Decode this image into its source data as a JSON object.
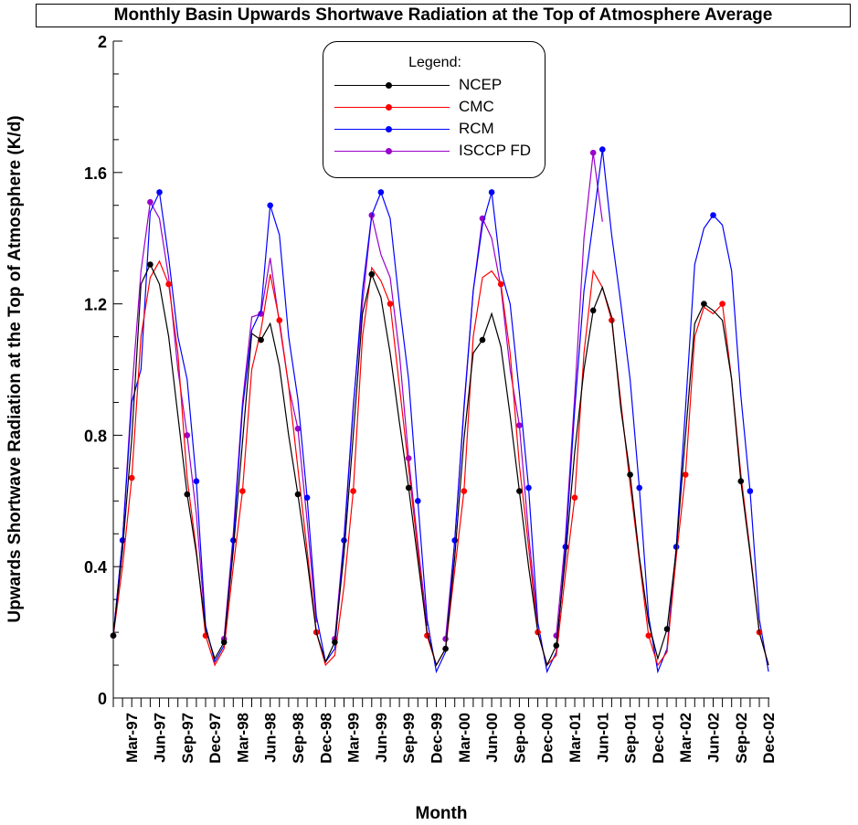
{
  "chart_data": {
    "type": "line",
    "title": "Monthly Basin Upwards Shortwave Radiation at the Top of Atmosphere Average",
    "xlabel": "Month",
    "ylabel": "Upwards Shortwave Radiation at the Top of Atmosphere (K/d)",
    "ylim": [
      0,
      2
    ],
    "yticks": [
      0,
      0.4,
      0.8,
      1.2,
      1.6,
      2
    ],
    "ytick_labels": [
      "0",
      "0.4",
      "0.8",
      "1.2",
      "1.6",
      "2"
    ],
    "x_tick_labels": [
      "Mar-97",
      "Jun-97",
      "Sep-97",
      "Dec-97",
      "Mar-98",
      "Jun-98",
      "Sep-98",
      "Dec-98",
      "Mar-99",
      "Jun-99",
      "Sep-99",
      "Dec-99",
      "Mar-00",
      "Jun-00",
      "Sep-00",
      "Dec-00",
      "Mar-01",
      "Jun-01",
      "Sep-01",
      "Dec-01",
      "Mar-02",
      "Jun-02",
      "Sep-02",
      "Dec-02"
    ],
    "legend_title": "Legend:",
    "legend_position": "top-center",
    "grid": false,
    "series": [
      {
        "name": "NCEP",
        "color": "#000000",
        "marker_every": 4,
        "marker_start": 0,
        "values": [
          0.19,
          0.45,
          0.79,
          1.26,
          1.32,
          1.26,
          1.1,
          0.86,
          0.62,
          0.44,
          0.21,
          0.12,
          0.17,
          0.45,
          0.78,
          1.11,
          1.09,
          1.14,
          1.01,
          0.8,
          0.62,
          0.42,
          0.2,
          0.11,
          0.17,
          0.44,
          0.8,
          1.17,
          1.29,
          1.22,
          1.05,
          0.84,
          0.64,
          0.42,
          0.2,
          0.1,
          0.15,
          0.43,
          0.79,
          1.05,
          1.09,
          1.17,
          1.07,
          0.86,
          0.63,
          0.4,
          0.2,
          0.1,
          0.16,
          0.43,
          0.75,
          1.0,
          1.18,
          1.25,
          1.16,
          0.88,
          0.68,
          0.43,
          0.23,
          0.12,
          0.21,
          0.45,
          0.8,
          1.14,
          1.2,
          1.18,
          1.15,
          0.97,
          0.66,
          0.44,
          0.2,
          0.1
        ]
      },
      {
        "name": "CMC",
        "color": "#ff0000",
        "marker_every": 4,
        "marker_start": 2,
        "values": [
          0.19,
          0.4,
          0.67,
          1.1,
          1.28,
          1.33,
          1.26,
          1.05,
          0.67,
          0.45,
          0.19,
          0.1,
          0.15,
          0.4,
          0.63,
          1.0,
          1.12,
          1.29,
          1.15,
          0.95,
          0.7,
          0.45,
          0.2,
          0.1,
          0.13,
          0.34,
          0.63,
          1.1,
          1.31,
          1.27,
          1.2,
          0.95,
          0.7,
          0.45,
          0.19,
          0.1,
          0.15,
          0.39,
          0.63,
          1.1,
          1.28,
          1.3,
          1.26,
          1.05,
          0.71,
          0.46,
          0.2,
          0.1,
          0.13,
          0.38,
          0.61,
          1.05,
          1.3,
          1.25,
          1.15,
          0.9,
          0.65,
          0.42,
          0.19,
          0.1,
          0.14,
          0.43,
          0.68,
          1.1,
          1.19,
          1.17,
          1.2,
          0.97,
          0.68,
          0.45,
          0.2,
          0.1
        ]
      },
      {
        "name": "RCM",
        "color": "#0000ff",
        "marker_every": 4,
        "marker_start": 1,
        "values": [
          0.19,
          0.48,
          0.9,
          1.0,
          1.48,
          1.54,
          1.34,
          1.1,
          0.97,
          0.66,
          0.22,
          0.11,
          0.16,
          0.48,
          0.88,
          1.12,
          1.18,
          1.5,
          1.41,
          1.1,
          0.91,
          0.61,
          0.25,
          0.11,
          0.15,
          0.48,
          0.88,
          1.24,
          1.47,
          1.54,
          1.46,
          1.2,
          0.97,
          0.6,
          0.24,
          0.08,
          0.14,
          0.48,
          0.88,
          1.24,
          1.44,
          1.54,
          1.3,
          1.2,
          0.93,
          0.64,
          0.23,
          0.08,
          0.14,
          0.46,
          0.88,
          1.24,
          1.45,
          1.67,
          1.41,
          1.2,
          0.97,
          0.64,
          0.25,
          0.08,
          0.15,
          0.46,
          0.88,
          1.32,
          1.43,
          1.47,
          1.44,
          1.3,
          0.92,
          0.63,
          0.24,
          0.08
        ]
      },
      {
        "name": "ISCCP FD",
        "color": "#9900cc",
        "marker_every": 4,
        "marker_start": 0,
        "values": [
          0.19,
          0.48,
          0.93,
          1.3,
          1.51,
          1.46,
          1.28,
          1.0,
          0.8,
          0.56,
          0.21,
          null,
          0.18,
          0.5,
          0.9,
          1.16,
          1.17,
          1.34,
          1.14,
          0.95,
          0.82,
          0.54,
          0.23,
          null,
          0.18,
          0.49,
          0.89,
          1.2,
          1.47,
          1.35,
          1.28,
          1.05,
          0.73,
          0.47,
          0.22,
          null,
          0.18,
          0.48,
          0.89,
          1.24,
          1.46,
          1.4,
          1.25,
          1.0,
          0.83,
          0.5,
          0.22,
          null,
          0.19,
          0.49,
          0.92,
          1.4,
          1.66,
          1.45,
          null,
          null,
          null,
          null,
          null,
          null,
          null,
          null,
          null,
          null,
          null,
          null,
          null,
          null,
          null,
          null,
          null,
          null
        ]
      }
    ]
  }
}
